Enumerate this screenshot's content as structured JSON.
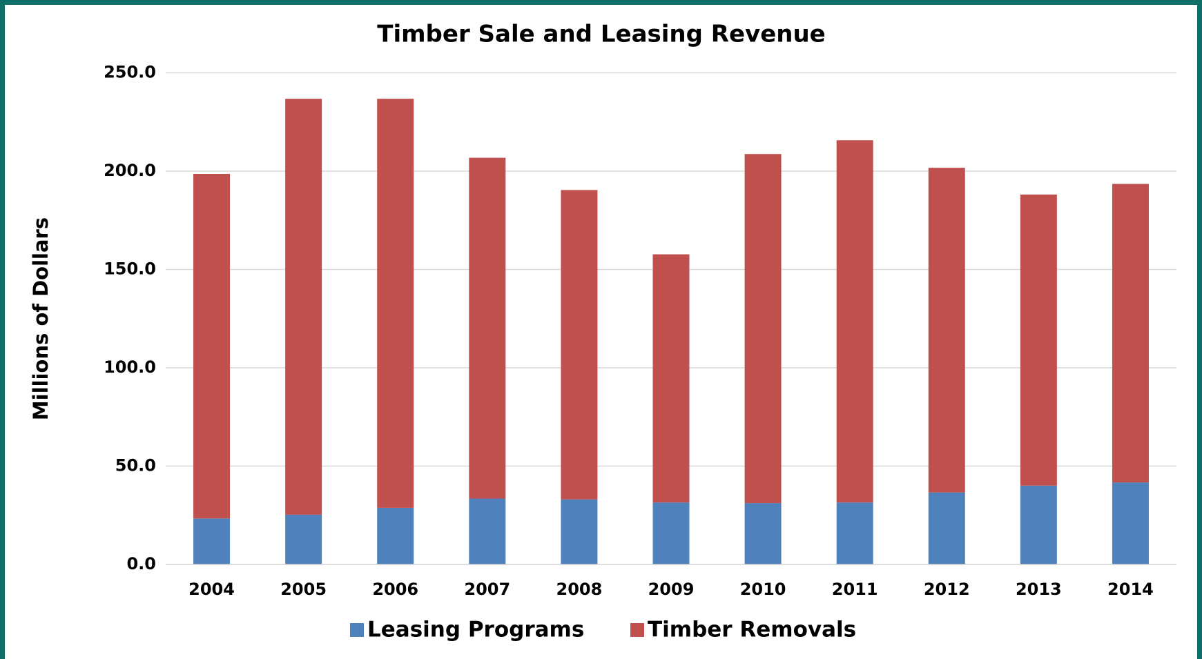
{
  "chart_data": {
    "type": "stacked_bar",
    "title": "Timber Sale and Leasing Revenue",
    "y_label": "Millions of Dollars",
    "categories": [
      "2004",
      "2005",
      "2006",
      "2007",
      "2008",
      "2009",
      "2010",
      "2011",
      "2012",
      "2013",
      "2014"
    ],
    "series": [
      {
        "name": "Leasing Programs",
        "color": "#4f81bd",
        "values": [
          23.4,
          25.3,
          28.8,
          33.5,
          33.1,
          31.5,
          31.2,
          31.5,
          36.6,
          40.1,
          41.7
        ]
      },
      {
        "name": "Timber Removals",
        "color": "#c0504d",
        "values": [
          175.2,
          211.5,
          208.0,
          173.3,
          157.3,
          126.2,
          177.5,
          184.2,
          165.1,
          148.0,
          151.8
        ]
      }
    ],
    "ylim": [
      0,
      250
    ],
    "yticks": [
      {
        "value": 0,
        "label": "0.0"
      },
      {
        "value": 50,
        "label": "50.0"
      },
      {
        "value": 100,
        "label": "100.0"
      },
      {
        "value": 150,
        "label": "150.0"
      },
      {
        "value": 200,
        "label": "200.0"
      },
      {
        "value": 250,
        "label": "250.0"
      }
    ],
    "grid": true,
    "legend": "bottom"
  }
}
